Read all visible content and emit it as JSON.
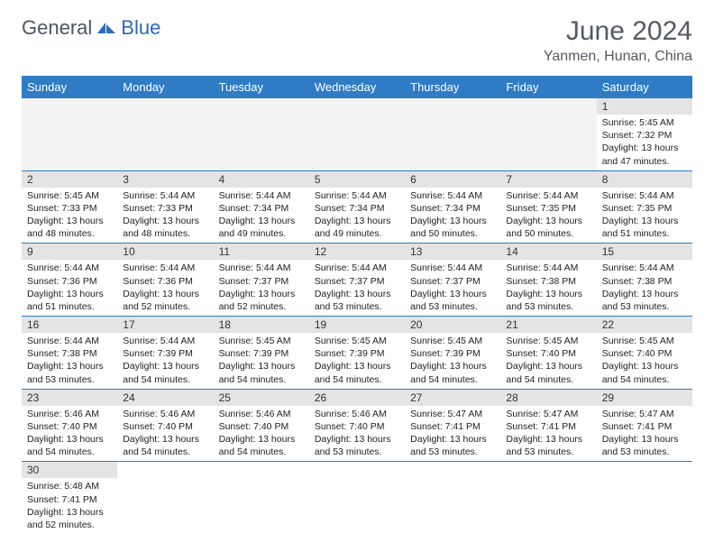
{
  "brand": {
    "part1": "General",
    "part2": "Blue"
  },
  "title": "June 2024",
  "location": "Yanmen, Hunan, China",
  "colors": {
    "header_bg": "#2f7cc4",
    "header_text": "#ffffff",
    "daynum_bg": "#e4e4e4",
    "daynum_text": "#333333",
    "cell_border": "#2f7cc4",
    "empty_bg": "#f3f3f3",
    "title_color": "#555a60",
    "brand_gray": "#4b5563",
    "brand_blue": "#2a6bb5"
  },
  "typography": {
    "title_fontsize": 30,
    "location_fontsize": 16,
    "dayheader_fontsize": 13,
    "daynum_fontsize": 12,
    "body_fontsize": 10.5
  },
  "calendar": {
    "day_headers": [
      "Sunday",
      "Monday",
      "Tuesday",
      "Wednesday",
      "Thursday",
      "Friday",
      "Saturday"
    ],
    "weeks": [
      [
        null,
        null,
        null,
        null,
        null,
        null,
        {
          "n": "1",
          "sunrise": "5:45 AM",
          "sunset": "7:32 PM",
          "daylight_h": "13",
          "daylight_m": "47"
        }
      ],
      [
        {
          "n": "2",
          "sunrise": "5:45 AM",
          "sunset": "7:33 PM",
          "daylight_h": "13",
          "daylight_m": "48"
        },
        {
          "n": "3",
          "sunrise": "5:44 AM",
          "sunset": "7:33 PM",
          "daylight_h": "13",
          "daylight_m": "48"
        },
        {
          "n": "4",
          "sunrise": "5:44 AM",
          "sunset": "7:34 PM",
          "daylight_h": "13",
          "daylight_m": "49"
        },
        {
          "n": "5",
          "sunrise": "5:44 AM",
          "sunset": "7:34 PM",
          "daylight_h": "13",
          "daylight_m": "49"
        },
        {
          "n": "6",
          "sunrise": "5:44 AM",
          "sunset": "7:34 PM",
          "daylight_h": "13",
          "daylight_m": "50"
        },
        {
          "n": "7",
          "sunrise": "5:44 AM",
          "sunset": "7:35 PM",
          "daylight_h": "13",
          "daylight_m": "50"
        },
        {
          "n": "8",
          "sunrise": "5:44 AM",
          "sunset": "7:35 PM",
          "daylight_h": "13",
          "daylight_m": "51"
        }
      ],
      [
        {
          "n": "9",
          "sunrise": "5:44 AM",
          "sunset": "7:36 PM",
          "daylight_h": "13",
          "daylight_m": "51"
        },
        {
          "n": "10",
          "sunrise": "5:44 AM",
          "sunset": "7:36 PM",
          "daylight_h": "13",
          "daylight_m": "52"
        },
        {
          "n": "11",
          "sunrise": "5:44 AM",
          "sunset": "7:37 PM",
          "daylight_h": "13",
          "daylight_m": "52"
        },
        {
          "n": "12",
          "sunrise": "5:44 AM",
          "sunset": "7:37 PM",
          "daylight_h": "13",
          "daylight_m": "53"
        },
        {
          "n": "13",
          "sunrise": "5:44 AM",
          "sunset": "7:37 PM",
          "daylight_h": "13",
          "daylight_m": "53"
        },
        {
          "n": "14",
          "sunrise": "5:44 AM",
          "sunset": "7:38 PM",
          "daylight_h": "13",
          "daylight_m": "53"
        },
        {
          "n": "15",
          "sunrise": "5:44 AM",
          "sunset": "7:38 PM",
          "daylight_h": "13",
          "daylight_m": "53"
        }
      ],
      [
        {
          "n": "16",
          "sunrise": "5:44 AM",
          "sunset": "7:38 PM",
          "daylight_h": "13",
          "daylight_m": "53"
        },
        {
          "n": "17",
          "sunrise": "5:44 AM",
          "sunset": "7:39 PM",
          "daylight_h": "13",
          "daylight_m": "54"
        },
        {
          "n": "18",
          "sunrise": "5:45 AM",
          "sunset": "7:39 PM",
          "daylight_h": "13",
          "daylight_m": "54"
        },
        {
          "n": "19",
          "sunrise": "5:45 AM",
          "sunset": "7:39 PM",
          "daylight_h": "13",
          "daylight_m": "54"
        },
        {
          "n": "20",
          "sunrise": "5:45 AM",
          "sunset": "7:39 PM",
          "daylight_h": "13",
          "daylight_m": "54"
        },
        {
          "n": "21",
          "sunrise": "5:45 AM",
          "sunset": "7:40 PM",
          "daylight_h": "13",
          "daylight_m": "54"
        },
        {
          "n": "22",
          "sunrise": "5:45 AM",
          "sunset": "7:40 PM",
          "daylight_h": "13",
          "daylight_m": "54"
        }
      ],
      [
        {
          "n": "23",
          "sunrise": "5:46 AM",
          "sunset": "7:40 PM",
          "daylight_h": "13",
          "daylight_m": "54"
        },
        {
          "n": "24",
          "sunrise": "5:46 AM",
          "sunset": "7:40 PM",
          "daylight_h": "13",
          "daylight_m": "54"
        },
        {
          "n": "25",
          "sunrise": "5:46 AM",
          "sunset": "7:40 PM",
          "daylight_h": "13",
          "daylight_m": "54"
        },
        {
          "n": "26",
          "sunrise": "5:46 AM",
          "sunset": "7:40 PM",
          "daylight_h": "13",
          "daylight_m": "53"
        },
        {
          "n": "27",
          "sunrise": "5:47 AM",
          "sunset": "7:41 PM",
          "daylight_h": "13",
          "daylight_m": "53"
        },
        {
          "n": "28",
          "sunrise": "5:47 AM",
          "sunset": "7:41 PM",
          "daylight_h": "13",
          "daylight_m": "53"
        },
        {
          "n": "29",
          "sunrise": "5:47 AM",
          "sunset": "7:41 PM",
          "daylight_h": "13",
          "daylight_m": "53"
        }
      ],
      [
        {
          "n": "30",
          "sunrise": "5:48 AM",
          "sunset": "7:41 PM",
          "daylight_h": "13",
          "daylight_m": "52"
        },
        null,
        null,
        null,
        null,
        null,
        null
      ]
    ],
    "labels": {
      "sunrise": "Sunrise:",
      "sunset": "Sunset:",
      "daylight_prefix": "Daylight:",
      "hours_word": "hours",
      "and_word": "and",
      "minutes_word": "minutes."
    }
  }
}
